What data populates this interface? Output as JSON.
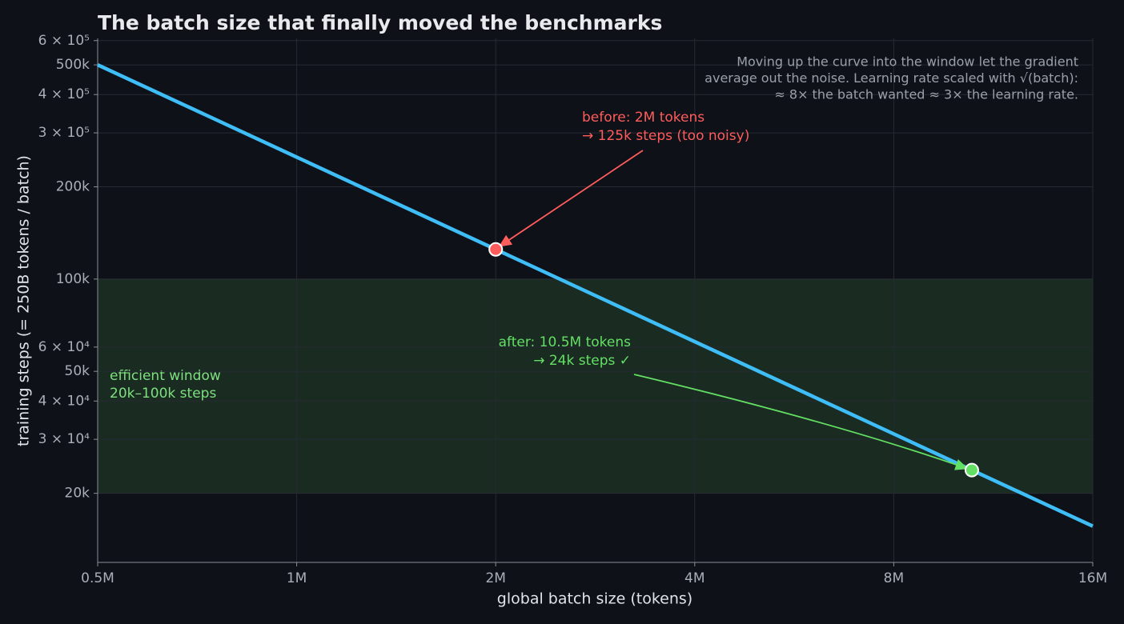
{
  "chart_data": {
    "type": "line",
    "title": "The batch size that finally moved the benchmarks",
    "x_label": "global batch size (tokens)",
    "y_label": "training steps  (= 250B tokens / batch)",
    "xlog": true,
    "ylog": true,
    "grid": true,
    "xlim": [
      500000,
      16000000
    ],
    "ylim": [
      11900,
      610000
    ],
    "xticks": [
      {
        "value": 500000,
        "label": "0.5M"
      },
      {
        "value": 1000000,
        "label": "1M"
      },
      {
        "value": 2000000,
        "label": "2M"
      },
      {
        "value": 4000000,
        "label": "4M"
      },
      {
        "value": 8000000,
        "label": "8M"
      },
      {
        "value": 16000000,
        "label": "16M"
      }
    ],
    "yticks": [
      {
        "value": 20000,
        "label": "20k"
      },
      {
        "value": 30000,
        "label": "3 × 10⁴"
      },
      {
        "value": 40000,
        "label": "4 × 10⁴"
      },
      {
        "value": 50000,
        "label": "50k"
      },
      {
        "value": 60000,
        "label": "6 × 10⁴"
      },
      {
        "value": 100000,
        "label": "100k"
      },
      {
        "value": 200000,
        "label": "200k"
      },
      {
        "value": 300000,
        "label": "3 × 10⁵"
      },
      {
        "value": 400000,
        "label": "4 × 10⁵"
      },
      {
        "value": 500000,
        "label": "500k"
      },
      {
        "value": 600000,
        "label": "6 × 10⁵"
      }
    ],
    "series": [
      {
        "name": "steps",
        "color": "#3fbdf7",
        "x": [
          500000,
          1000000,
          2000000,
          4000000,
          8000000,
          16000000
        ],
        "values": [
          500000,
          250000,
          125000,
          62500,
          31250,
          15625
        ]
      }
    ],
    "band": {
      "range": [
        20000,
        100000
      ],
      "color": "#1a2b22",
      "lines": [
        "efficient window",
        "20k–100k steps"
      ],
      "text_color": "#7ee07e"
    },
    "points": [
      {
        "x": 2000000,
        "y": 125000,
        "color": "#ff5c5c",
        "lines": [
          "before: 2M tokens",
          "→ 125k steps (too noisy)"
        ]
      },
      {
        "x": 10500000,
        "y": 23810,
        "color": "#63e063",
        "lines": [
          "after: 10.5M tokens",
          "→ 24k steps ✓"
        ]
      }
    ],
    "note": [
      "Moving up the curve into the window let the gradient",
      "average out the noise. Learning rate scaled with √(batch):",
      "≈ 8× the batch wanted ≈ 3× the learning rate."
    ]
  }
}
